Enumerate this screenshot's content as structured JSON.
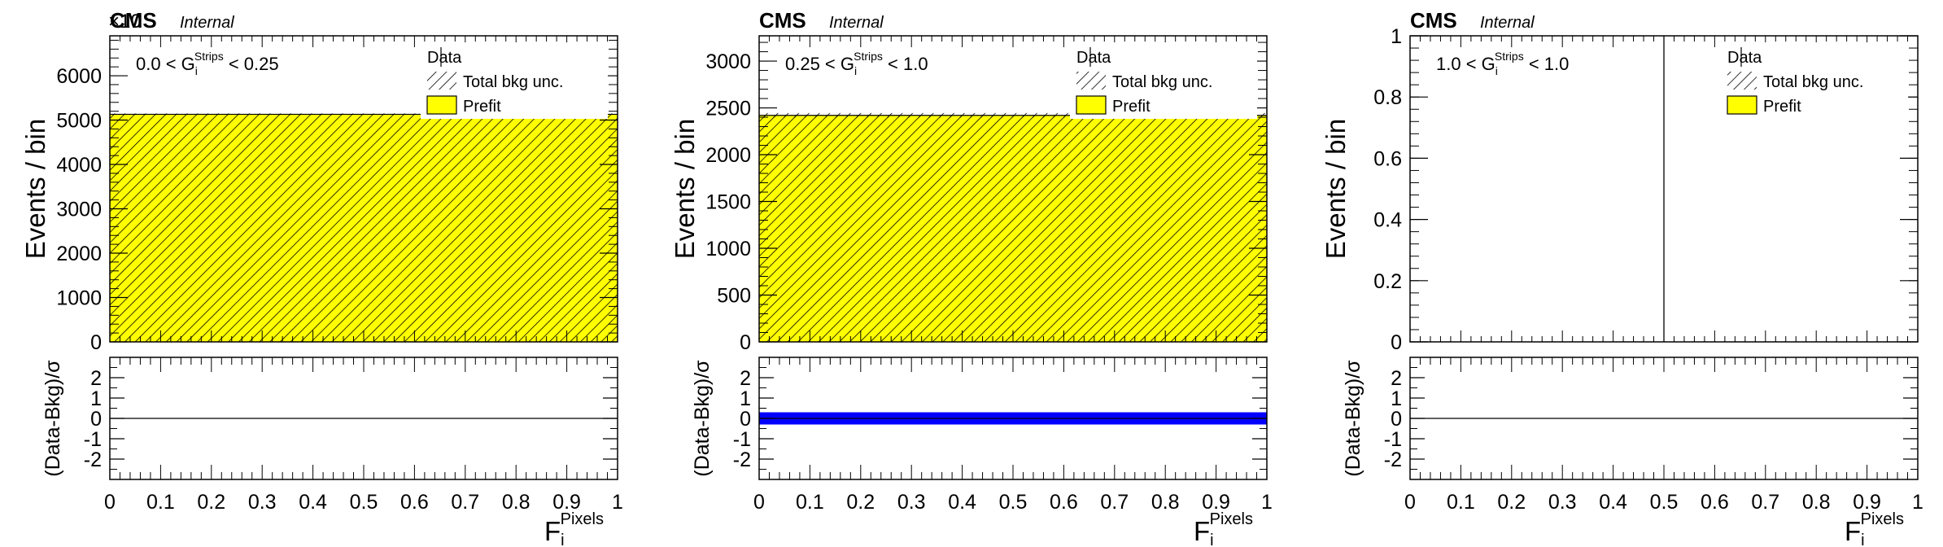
{
  "experiment_label": "CMS",
  "status_label": "Internal",
  "colors": {
    "prefit_fill": "#ffff00",
    "hatch": "#000000",
    "pull_band": "#0000ff",
    "frame": "#000000"
  },
  "chart_data": [
    {
      "type": "bar",
      "region": {
        "prefix": "0.0 < G",
        "sub": "i",
        "sup": "Strips",
        "suffix": " < 0.25"
      },
      "ylabel": "Events / bin",
      "ylim": [
        0,
        6900
      ],
      "y_multiplier": "×10",
      "yticks": [
        0,
        1000,
        2000,
        3000,
        4000,
        5000,
        6000
      ],
      "xlim": [
        0,
        1
      ],
      "xticks": [
        0,
        0.1,
        0.2,
        0.3,
        0.4,
        0.5,
        0.6,
        0.7,
        0.8,
        0.9,
        1
      ],
      "xlabel": {
        "main": "F",
        "sub": "i",
        "sup": "Pixels"
      },
      "bins": [
        [
          0,
          1
        ]
      ],
      "series": [
        {
          "name": "Prefit",
          "values": [
            5130
          ]
        }
      ],
      "bkg_unc": [
        20
      ],
      "vertical_line": null,
      "legend": [
        "Data",
        "Total bkg unc.",
        "Prefit"
      ],
      "legend_placement": "top-right",
      "ratio": {
        "ylabel": "(Data-Bkg)/σ",
        "ylim": [
          -3,
          3
        ],
        "yticks": [
          -2,
          -1,
          0,
          1,
          2
        ],
        "band": null
      }
    },
    {
      "type": "bar",
      "region": {
        "prefix": "0.25 < G",
        "sub": "i",
        "sup": "Strips",
        "suffix": " < 1.0"
      },
      "ylabel": "Events / bin",
      "ylim": [
        0,
        3270
      ],
      "y_multiplier": "",
      "yticks": [
        0,
        500,
        1000,
        1500,
        2000,
        2500,
        3000
      ],
      "xlim": [
        0,
        1
      ],
      "xticks": [
        0,
        0.1,
        0.2,
        0.3,
        0.4,
        0.5,
        0.6,
        0.7,
        0.8,
        0.9,
        1
      ],
      "xlabel": {
        "main": "F",
        "sub": "i",
        "sup": "Pixels"
      },
      "bins": [
        [
          0,
          1
        ]
      ],
      "series": [
        {
          "name": "Prefit",
          "values": [
            2420
          ]
        }
      ],
      "bkg_unc": [
        25
      ],
      "vertical_line": null,
      "legend": [
        "Data",
        "Total bkg unc.",
        "Prefit"
      ],
      "legend_placement": "top-right",
      "ratio": {
        "ylabel": "(Data-Bkg)/σ",
        "ylim": [
          -3,
          3
        ],
        "yticks": [
          -2,
          -1,
          0,
          1,
          2
        ],
        "band": [
          -0.3,
          0.3
        ]
      }
    },
    {
      "type": "bar",
      "region": {
        "prefix": "1.0 < G",
        "sub": "i",
        "sup": "Strips",
        "suffix": " < 1.0"
      },
      "ylabel": "Events / bin",
      "ylim": [
        0,
        1
      ],
      "y_multiplier": "",
      "yticks": [
        0,
        0.2,
        0.4,
        0.6,
        0.8,
        1
      ],
      "xlim": [
        0,
        1
      ],
      "xticks": [
        0,
        0.1,
        0.2,
        0.3,
        0.4,
        0.5,
        0.6,
        0.7,
        0.8,
        0.9,
        1
      ],
      "xlabel": {
        "main": "F",
        "sub": "i",
        "sup": "Pixels"
      },
      "bins": [],
      "series": [
        {
          "name": "Prefit",
          "values": []
        }
      ],
      "bkg_unc": [],
      "vertical_line": 0.5,
      "legend": [
        "Data",
        "Total bkg unc.",
        "Prefit"
      ],
      "legend_placement": "top-right",
      "ratio": {
        "ylabel": "(Data-Bkg)/σ",
        "ylim": [
          -3,
          3
        ],
        "yticks": [
          -2,
          -1,
          0,
          1,
          2
        ],
        "band": null
      }
    }
  ]
}
